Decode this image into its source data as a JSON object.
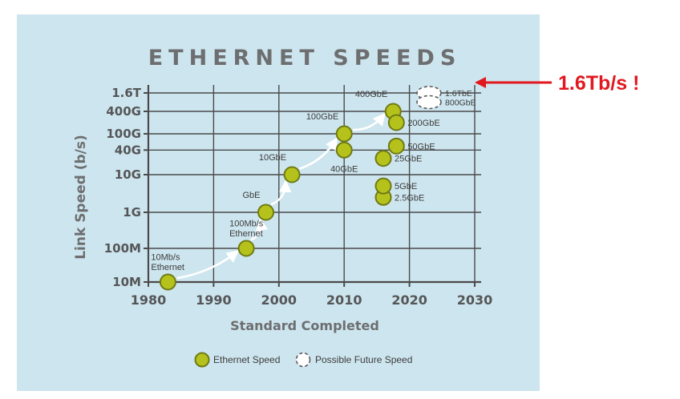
{
  "chart_data": {
    "type": "scatter",
    "title": "ETHERNET SPEEDS",
    "xlabel": "Standard Completed",
    "ylabel": "Link Speed (b/s)",
    "xlim": [
      1980,
      2030
    ],
    "x_ticks": [
      1980,
      1990,
      2000,
      2010,
      2020,
      2030
    ],
    "y_scale": "log",
    "y_ticks": [
      {
        "value": 10000000,
        "label": "10M"
      },
      {
        "value": 100000000,
        "label": "100M"
      },
      {
        "value": 1000000000,
        "label": "1G"
      },
      {
        "value": 10000000000,
        "label": "10G"
      },
      {
        "value": 40000000000,
        "label": "40G"
      },
      {
        "value": 100000000000,
        "label": "100G"
      },
      {
        "value": 400000000000,
        "label": "400G"
      },
      {
        "value": 1600000000000,
        "label": "1.6T"
      }
    ],
    "grid": true,
    "legend_position": "bottom",
    "series": [
      {
        "name": "Ethernet Speed",
        "color": "#b6c21c",
        "points": [
          {
            "x": 1983,
            "y": 10000000,
            "label": "10Mb/s\nEthernet",
            "label_side": "above"
          },
          {
            "x": 1995,
            "y": 100000000,
            "label": "100Mb/s\nEthernet",
            "label_side": "above"
          },
          {
            "x": 1998,
            "y": 1000000000,
            "label": "GbE",
            "label_side": "above-left"
          },
          {
            "x": 2002,
            "y": 10000000000,
            "label": "10GbE",
            "label_side": "above-left"
          },
          {
            "x": 2010,
            "y": 40000000000,
            "label": "40GbE",
            "label_side": "below"
          },
          {
            "x": 2010,
            "y": 100000000000,
            "label": "100GbE",
            "label_side": "above-left"
          },
          {
            "x": 2016,
            "y": 2500000000,
            "label": "2.5GbE",
            "label_side": "right"
          },
          {
            "x": 2016,
            "y": 5000000000,
            "label": "5GbE",
            "label_side": "right"
          },
          {
            "x": 2016,
            "y": 25000000000,
            "label": "25GbE",
            "label_side": "right"
          },
          {
            "x": 2017.5,
            "y": 400000000000,
            "label": "400GbE",
            "label_side": "above-left"
          },
          {
            "x": 2018,
            "y": 200000000000,
            "label": "200GbE",
            "label_side": "right"
          },
          {
            "x": 2018,
            "y": 50000000000,
            "label": "50GbE",
            "label_side": "right"
          }
        ]
      },
      {
        "name": "Possible Future Speed",
        "color": "#ffffff",
        "style": "dashed",
        "points": [
          {
            "x": 2023,
            "y": 1600000000000,
            "label": "1.6TbE",
            "label_side": "right"
          },
          {
            "x": 2023,
            "y": 800000000000,
            "label": "800GbE",
            "label_side": "right"
          }
        ]
      }
    ],
    "trend_path": [
      "10Mb/s\nEthernet",
      "100Mb/s\nEthernet",
      "GbE",
      "10GbE",
      "100GbE",
      "400GbE"
    ],
    "annotation": {
      "text": "1.6Tb/s !",
      "color": "#e1181f",
      "points_to": "1.6TbE"
    }
  },
  "colors": {
    "panel_background": "#cde5ee",
    "grid": "#4a4a4a",
    "marker_fill": "#b6c21c",
    "marker_stroke": "#6f7a13",
    "trend_arrow": "#ffffff",
    "callout": "#e1181f"
  }
}
